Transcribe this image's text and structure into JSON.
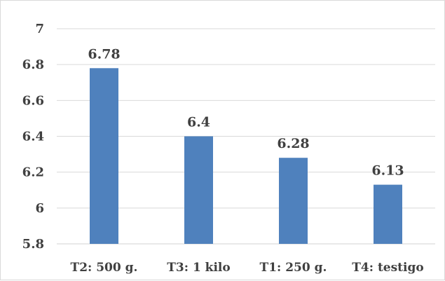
{
  "chart_data": {
    "type": "bar",
    "categories": [
      "T2: 500 g.",
      "T3: 1 kilo",
      "T1: 250 g.",
      "T4: testigo"
    ],
    "values": [
      6.78,
      6.4,
      6.28,
      6.13
    ],
    "data_labels": [
      "6.78",
      "6.4",
      "6.28",
      "6.13"
    ],
    "title": "",
    "xlabel": "",
    "ylabel": "",
    "ylim": [
      5.8,
      7
    ],
    "yticks": [
      5.8,
      6,
      6.2,
      6.4,
      6.6,
      6.8,
      7
    ],
    "ytick_labels": [
      "5.8",
      "6",
      "6.2",
      "6.4",
      "6.6",
      "6.8",
      "7"
    ],
    "grid": true,
    "legend": "none",
    "bar_color": "#4f81bd",
    "grid_color": "#d9d9d9"
  }
}
